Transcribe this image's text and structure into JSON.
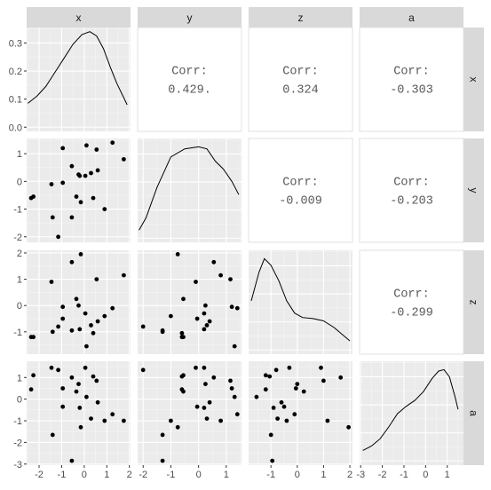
{
  "chart_data": {
    "type": "scatter-matrix",
    "variables": [
      "x",
      "y",
      "z",
      "a"
    ],
    "axes": {
      "x": {
        "range": [
          -2.55,
          2.05
        ],
        "ticks": [
          -2,
          -1,
          0,
          1,
          2
        ],
        "tick_labels": [
          "-2",
          "-1",
          "0",
          "1",
          "2"
        ]
      },
      "y": {
        "range": [
          -2.2,
          1.55
        ],
        "ticks": [
          -2,
          -1,
          0,
          1
        ],
        "tick_labels": [
          "-2",
          "-1",
          "0",
          "1"
        ]
      },
      "z": {
        "range": [
          -1.85,
          2.1
        ],
        "ticks": [
          -1,
          0,
          1,
          2
        ],
        "tick_labels": [
          "-1",
          "0",
          "1",
          "2"
        ]
      },
      "a": {
        "range": [
          -3.05,
          1.75
        ],
        "ticks": [
          -3,
          -2,
          -1,
          0,
          1
        ],
        "tick_labels": [
          "-3",
          "-2",
          "-1",
          "0",
          "1"
        ]
      }
    },
    "density_y_axis": {
      "range": [
        -0.015,
        0.355
      ],
      "ticks": [
        0.0,
        0.1,
        0.2,
        0.3
      ],
      "tick_labels": [
        "0.0",
        "0.1",
        "0.2",
        "0.3"
      ]
    },
    "bottom_tick_labels": [
      [
        "-2",
        "-1",
        "0",
        "1",
        "2"
      ],
      [
        "-2",
        "-1",
        "0",
        "1"
      ],
      [
        "-1",
        "0",
        "1",
        "2"
      ],
      [
        "-3",
        "-2",
        "-1",
        "0",
        "1"
      ]
    ],
    "observations": [
      {
        "x": -2.35,
        "y": -0.6,
        "z": -1.2,
        "a": 0.45
      },
      {
        "x": -2.25,
        "y": -0.55,
        "z": -1.2,
        "a": 1.1
      },
      {
        "x": -1.45,
        "y": -0.1,
        "z": 0.9,
        "a": 1.45
      },
      {
        "x": -1.4,
        "y": -1.3,
        "z": -1.0,
        "a": -1.65
      },
      {
        "x": -1.15,
        "y": -2.0,
        "z": -0.8,
        "a": 1.35
      },
      {
        "x": -0.95,
        "y": 1.2,
        "z": -0.05,
        "a": 0.5
      },
      {
        "x": -0.95,
        "y": -0.05,
        "z": -0.5,
        "a": -0.35
      },
      {
        "x": -0.55,
        "y": 0.55,
        "z": 1.65,
        "a": 1.0
      },
      {
        "x": -0.55,
        "y": -1.3,
        "z": -0.95,
        "a": -2.85
      },
      {
        "x": -0.35,
        "y": -0.55,
        "z": 0.25,
        "a": 0.35
      },
      {
        "x": -0.25,
        "y": 0.25,
        "z": 0.0,
        "a": 0.7
      },
      {
        "x": -0.2,
        "y": 0.2,
        "z": -0.9,
        "a": -0.4
      },
      {
        "x": -0.15,
        "y": -0.75,
        "z": 1.95,
        "a": -1.3
      },
      {
        "x": 0.05,
        "y": 0.2,
        "z": -0.3,
        "a": 1.45
      },
      {
        "x": 0.1,
        "y": 1.3,
        "z": -1.55,
        "a": 0.1
      },
      {
        "x": 0.3,
        "y": 0.3,
        "z": -0.75,
        "a": -0.9
      },
      {
        "x": 0.4,
        "y": -0.6,
        "z": -1.05,
        "a": 1.05
      },
      {
        "x": 0.55,
        "y": 1.15,
        "z": 1.0,
        "a": 0.85
      },
      {
        "x": 0.6,
        "y": 0.4,
        "z": -0.6,
        "a": -0.15
      },
      {
        "x": 0.9,
        "y": -1.0,
        "z": -0.4,
        "a": -1.0
      },
      {
        "x": 1.25,
        "y": 1.4,
        "z": -0.1,
        "a": -0.7
      },
      {
        "x": 1.75,
        "y": 0.8,
        "z": 1.15,
        "a": -1.0
      }
    ],
    "correlations": [
      {
        "row": 0,
        "col": 1,
        "label": "Corr:",
        "value": "0.429."
      },
      {
        "row": 0,
        "col": 2,
        "label": "Corr:",
        "value": "0.324"
      },
      {
        "row": 0,
        "col": 3,
        "label": "Corr:",
        "value": "-0.303"
      },
      {
        "row": 1,
        "col": 2,
        "label": "Corr:",
        "value": "-0.009"
      },
      {
        "row": 1,
        "col": 3,
        "label": "Corr:",
        "value": "-0.203"
      },
      {
        "row": 2,
        "col": 3,
        "label": "Corr:",
        "value": "-0.299"
      }
    ],
    "densities": [
      {
        "var": "x",
        "points": [
          [
            -2.5,
            0.085
          ],
          [
            -2.1,
            0.11
          ],
          [
            -1.7,
            0.145
          ],
          [
            -1.3,
            0.195
          ],
          [
            -0.9,
            0.245
          ],
          [
            -0.5,
            0.295
          ],
          [
            -0.1,
            0.33
          ],
          [
            0.25,
            0.34
          ],
          [
            0.55,
            0.325
          ],
          [
            0.85,
            0.28
          ],
          [
            1.15,
            0.215
          ],
          [
            1.45,
            0.155
          ],
          [
            1.75,
            0.105
          ],
          [
            1.9,
            0.08
          ]
        ]
      },
      {
        "var": "y",
        "points": [
          [
            -2.15,
            0.06
          ],
          [
            -1.9,
            0.12
          ],
          [
            -1.5,
            0.27
          ],
          [
            -1.0,
            0.42
          ],
          [
            -0.5,
            0.46
          ],
          [
            0.0,
            0.47
          ],
          [
            0.3,
            0.46
          ],
          [
            0.6,
            0.4
          ],
          [
            0.9,
            0.36
          ],
          [
            1.2,
            0.3
          ],
          [
            1.45,
            0.235
          ]
        ]
      },
      {
        "var": "z",
        "points": [
          [
            -1.75,
            0.24
          ],
          [
            -1.45,
            0.37
          ],
          [
            -1.25,
            0.43
          ],
          [
            -1.0,
            0.4
          ],
          [
            -0.7,
            0.33
          ],
          [
            -0.4,
            0.24
          ],
          [
            -0.1,
            0.185
          ],
          [
            0.2,
            0.165
          ],
          [
            0.6,
            0.16
          ],
          [
            1.0,
            0.15
          ],
          [
            1.4,
            0.12
          ],
          [
            1.75,
            0.085
          ],
          [
            2.0,
            0.06
          ]
        ]
      },
      {
        "var": "a",
        "points": [
          [
            -2.9,
            0.05
          ],
          [
            -2.5,
            0.065
          ],
          [
            -2.1,
            0.09
          ],
          [
            -1.7,
            0.13
          ],
          [
            -1.3,
            0.175
          ],
          [
            -0.9,
            0.2
          ],
          [
            -0.5,
            0.22
          ],
          [
            -0.1,
            0.25
          ],
          [
            0.3,
            0.295
          ],
          [
            0.6,
            0.32
          ],
          [
            0.85,
            0.325
          ],
          [
            1.1,
            0.3
          ],
          [
            1.35,
            0.235
          ],
          [
            1.5,
            0.19
          ]
        ]
      }
    ],
    "grid": true,
    "legend": "none"
  }
}
